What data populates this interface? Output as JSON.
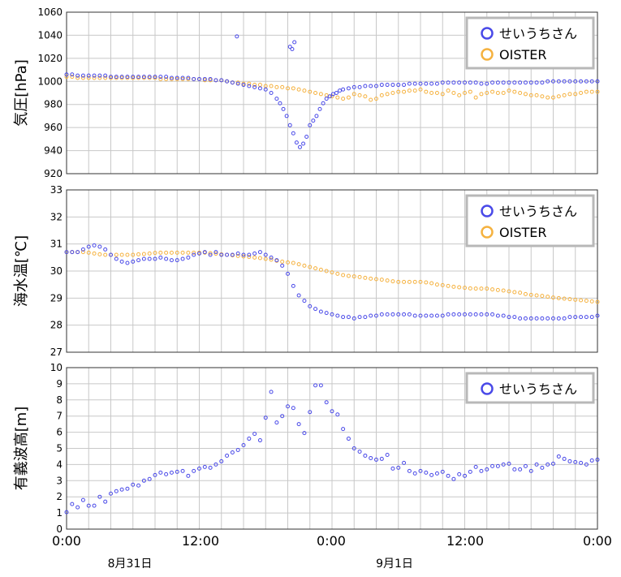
{
  "x_ticks": [
    "0:00",
    "12:00",
    "0:00",
    "12:00",
    "0:00"
  ],
  "date_labels": [
    "8月31日",
    "9月1日"
  ],
  "colors": {
    "seiuchi": "#4a4ae8",
    "oister": "#f5b240",
    "grid": "#c8c8c8",
    "legend_border": "#b8b8b8"
  },
  "chart_data": [
    {
      "type": "scatter",
      "ylabel": "気圧[hPa]",
      "ylim": [
        920,
        1060
      ],
      "yticks": [
        "920",
        "940",
        "960",
        "980",
        "1000",
        "1020",
        "1040",
        "1060"
      ],
      "xlim": [
        0,
        48
      ],
      "grid": true,
      "legend": "top-right",
      "series": [
        {
          "name": "せいうちさん",
          "x": [
            0,
            0.5,
            1,
            1.5,
            2,
            2.5,
            3,
            3.5,
            4,
            4.5,
            5,
            5.5,
            6,
            6.5,
            7,
            7.5,
            8,
            8.5,
            9,
            9.5,
            10,
            10.5,
            11,
            11.5,
            12,
            12.5,
            13,
            13.5,
            14,
            14.5,
            15,
            15.5,
            16,
            16.5,
            17,
            17.5,
            18,
            18.5,
            19,
            19.3,
            19.6,
            19.9,
            20.2,
            20.5,
            20.8,
            21.1,
            21.4,
            21.7,
            22,
            22.3,
            22.6,
            22.9,
            23.2,
            23.5,
            23.8,
            24.1,
            24.4,
            24.7,
            25,
            25.5,
            26,
            26.5,
            27,
            27.5,
            28,
            28.5,
            29,
            29.5,
            30,
            30.5,
            31,
            31.5,
            32,
            32.5,
            33,
            33.5,
            34,
            34.5,
            35,
            35.5,
            36,
            36.5,
            37,
            37.5,
            38,
            38.5,
            39,
            39.5,
            40,
            40.5,
            41,
            41.5,
            42,
            42.5,
            43,
            43.5,
            44,
            44.5,
            45,
            45.5,
            46,
            46.5,
            47,
            47.5,
            48,
            15.4,
            20.4,
            20.6,
            20.2
          ],
          "y": [
            1006,
            1006,
            1005,
            1005,
            1005,
            1005,
            1005,
            1005,
            1004,
            1004,
            1004,
            1004,
            1004,
            1004,
            1004,
            1004,
            1004,
            1004,
            1004,
            1003,
            1003,
            1003,
            1003,
            1002,
            1002,
            1002,
            1002,
            1001,
            1001,
            1000,
            999,
            998,
            997,
            996,
            995,
            994,
            993,
            990,
            985,
            981,
            976,
            970,
            962,
            955,
            947,
            943,
            946,
            952,
            962,
            966,
            970,
            976,
            981,
            985,
            987,
            989,
            990,
            992,
            993,
            994,
            995,
            995,
            996,
            996,
            996,
            997,
            997,
            997,
            997,
            997,
            998,
            998,
            998,
            998,
            998,
            998,
            999,
            999,
            999,
            999,
            999,
            999,
            999,
            998,
            998,
            999,
            999,
            999,
            999,
            999,
            999,
            999,
            999,
            999,
            999,
            1000,
            1000,
            1000,
            1000,
            1000,
            1000,
            1000,
            1000,
            1000,
            1000,
            1039,
            1028,
            1034,
            1030
          ]
        },
        {
          "name": "OISTER",
          "x": [
            0,
            0.5,
            1,
            1.5,
            2,
            2.5,
            3,
            3.5,
            4,
            4.5,
            5,
            5.5,
            6,
            6.5,
            7,
            7.5,
            8,
            8.5,
            9,
            9.5,
            10,
            10.5,
            11,
            11.5,
            12,
            12.5,
            13,
            13.5,
            14,
            14.5,
            15,
            15.5,
            16,
            16.5,
            17,
            17.5,
            18,
            18.5,
            19,
            19.5,
            20,
            20.5,
            21,
            21.5,
            22,
            22.5,
            23,
            23.5,
            24,
            24.5,
            25,
            25.5,
            26,
            26.5,
            27,
            27.5,
            28,
            28.5,
            29,
            29.5,
            30,
            30.5,
            31,
            31.5,
            32,
            32.5,
            33,
            33.5,
            34,
            34.5,
            35,
            35.5,
            36,
            36.5,
            37,
            37.5,
            38,
            38.5,
            39,
            39.5,
            40,
            40.5,
            41,
            41.5,
            42,
            42.5,
            43,
            43.5,
            44,
            44.5,
            45,
            45.5,
            46,
            46.5,
            47,
            47.5,
            48
          ],
          "y": [
            1004,
            1004,
            1003,
            1003,
            1003,
            1003,
            1003,
            1003,
            1003,
            1003,
            1003,
            1003,
            1003,
            1003,
            1003,
            1003,
            1003,
            1002,
            1002,
            1002,
            1002,
            1002,
            1002,
            1002,
            1002,
            1001,
            1001,
            1001,
            1001,
            1000,
            999,
            999,
            998,
            998,
            997,
            997,
            996,
            996,
            995,
            995,
            994,
            994,
            993,
            992,
            991,
            990,
            989,
            988,
            987,
            986,
            985,
            986,
            989,
            988,
            987,
            984,
            985,
            988,
            989,
            990,
            991,
            991,
            992,
            992,
            993,
            991,
            990,
            990,
            989,
            992,
            990,
            988,
            990,
            991,
            986,
            989,
            990,
            991,
            990,
            990,
            992,
            991,
            990,
            989,
            988,
            988,
            987,
            986,
            986,
            987,
            988,
            989,
            989,
            990,
            991,
            991,
            991
          ]
        }
      ]
    },
    {
      "type": "scatter",
      "ylabel": "海水温[℃]",
      "ylim": [
        27,
        33
      ],
      "yticks": [
        "27",
        "28",
        "29",
        "30",
        "31",
        "32",
        "33"
      ],
      "xlim": [
        0,
        48
      ],
      "grid": true,
      "legend": "top-right",
      "series": [
        {
          "name": "せいうちさん",
          "x": [
            0,
            0.5,
            1,
            1.5,
            2,
            2.5,
            3,
            3.5,
            4,
            4.5,
            5,
            5.5,
            6,
            6.5,
            7,
            7.5,
            8,
            8.5,
            9,
            9.5,
            10,
            10.5,
            11,
            11.5,
            12,
            12.5,
            13,
            13.5,
            14,
            14.5,
            15,
            15.5,
            16,
            16.5,
            17,
            17.5,
            18,
            18.5,
            19,
            19.5,
            20,
            20.5,
            21,
            21.5,
            22,
            22.5,
            23,
            23.5,
            24,
            24.5,
            25,
            25.5,
            26,
            26.5,
            27,
            27.5,
            28,
            28.5,
            29,
            29.5,
            30,
            30.5,
            31,
            31.5,
            32,
            32.5,
            33,
            33.5,
            34,
            34.5,
            35,
            35.5,
            36,
            36.5,
            37,
            37.5,
            38,
            38.5,
            39,
            39.5,
            40,
            40.5,
            41,
            41.5,
            42,
            42.5,
            43,
            43.5,
            44,
            44.5,
            45,
            45.5,
            46,
            46.5,
            47,
            47.5,
            48
          ],
          "y": [
            30.7,
            30.7,
            30.7,
            30.8,
            30.9,
            30.95,
            30.9,
            30.8,
            30.6,
            30.45,
            30.35,
            30.3,
            30.35,
            30.4,
            30.45,
            30.45,
            30.45,
            30.5,
            30.45,
            30.4,
            30.4,
            30.45,
            30.5,
            30.6,
            30.65,
            30.7,
            30.6,
            30.7,
            30.6,
            30.6,
            30.6,
            30.65,
            30.6,
            30.6,
            30.65,
            30.7,
            30.6,
            30.5,
            30.4,
            30.2,
            29.9,
            29.45,
            29.1,
            28.9,
            28.7,
            28.6,
            28.5,
            28.45,
            28.4,
            28.35,
            28.3,
            28.3,
            28.25,
            28.3,
            28.3,
            28.35,
            28.35,
            28.4,
            28.4,
            28.4,
            28.4,
            28.4,
            28.4,
            28.35,
            28.35,
            28.35,
            28.35,
            28.35,
            28.35,
            28.4,
            28.4,
            28.4,
            28.4,
            28.4,
            28.4,
            28.4,
            28.4,
            28.4,
            28.35,
            28.35,
            28.3,
            28.3,
            28.25,
            28.25,
            28.25,
            28.25,
            28.25,
            28.25,
            28.25,
            28.25,
            28.25,
            28.3,
            28.3,
            28.3,
            28.3,
            28.3,
            28.35
          ]
        },
        {
          "name": "OISTER",
          "x": [
            0,
            0.5,
            1,
            1.5,
            2,
            2.5,
            3,
            3.5,
            4,
            4.5,
            5,
            5.5,
            6,
            6.5,
            7,
            7.5,
            8,
            8.5,
            9,
            9.5,
            10,
            10.5,
            11,
            11.5,
            12,
            12.5,
            13,
            13.5,
            14,
            14.5,
            15,
            15.5,
            16,
            16.5,
            17,
            17.5,
            18,
            18.5,
            19,
            19.5,
            20,
            20.5,
            21,
            21.5,
            22,
            22.5,
            23,
            23.5,
            24,
            24.5,
            25,
            25.5,
            26,
            26.5,
            27,
            27.5,
            28,
            28.5,
            29,
            29.5,
            30,
            30.5,
            31,
            31.5,
            32,
            32.5,
            33,
            33.5,
            34,
            34.5,
            35,
            35.5,
            36,
            36.5,
            37,
            37.5,
            38,
            38.5,
            39,
            39.5,
            40,
            40.5,
            41,
            41.5,
            42,
            42.5,
            43,
            43.5,
            44,
            44.5,
            45,
            45.5,
            46,
            46.5,
            47,
            47.5,
            48
          ],
          "y": [
            30.7,
            30.7,
            30.7,
            30.7,
            30.68,
            30.65,
            30.62,
            30.6,
            30.6,
            30.6,
            30.6,
            30.6,
            30.6,
            30.62,
            30.63,
            30.65,
            30.67,
            30.68,
            30.68,
            30.68,
            30.68,
            30.68,
            30.68,
            30.68,
            30.68,
            30.68,
            30.66,
            30.64,
            30.62,
            30.6,
            30.58,
            30.56,
            30.54,
            30.52,
            30.5,
            30.48,
            30.45,
            30.42,
            30.38,
            30.35,
            30.32,
            30.3,
            30.25,
            30.2,
            30.15,
            30.1,
            30.05,
            30,
            29.95,
            29.9,
            29.85,
            29.82,
            29.8,
            29.78,
            29.75,
            29.72,
            29.7,
            29.68,
            29.65,
            29.62,
            29.6,
            29.6,
            29.6,
            29.6,
            29.6,
            29.58,
            29.55,
            29.5,
            29.48,
            29.45,
            29.42,
            29.4,
            29.38,
            29.36,
            29.35,
            29.35,
            29.35,
            29.32,
            29.3,
            29.28,
            29.25,
            29.22,
            29.2,
            29.15,
            29.12,
            29.1,
            29.08,
            29.05,
            29.02,
            29,
            28.98,
            28.96,
            28.94,
            28.92,
            28.9,
            28.88,
            28.86
          ]
        }
      ]
    },
    {
      "type": "scatter",
      "ylabel": "有義波高[m]",
      "ylim": [
        0,
        10
      ],
      "yticks": [
        "0",
        "1",
        "2",
        "3",
        "4",
        "5",
        "6",
        "7",
        "8",
        "9",
        "10"
      ],
      "xlim": [
        0,
        48
      ],
      "grid": true,
      "legend": "top-right",
      "series": [
        {
          "name": "せいうちさん",
          "x": [
            0,
            0.5,
            1,
            1.5,
            2,
            2.5,
            3,
            3.5,
            4,
            4.5,
            5,
            5.5,
            6,
            6.5,
            7,
            7.5,
            8,
            8.5,
            9,
            9.5,
            10,
            10.5,
            11,
            11.5,
            12,
            12.5,
            13,
            13.5,
            14,
            14.5,
            15,
            15.5,
            16,
            16.5,
            17,
            17.5,
            18,
            18.5,
            19,
            19.5,
            20,
            20.5,
            21,
            21.5,
            22,
            22.5,
            23,
            23.5,
            24,
            24.5,
            25,
            25.5,
            26,
            26.5,
            27,
            27.5,
            28,
            28.5,
            29,
            29.5,
            30,
            30.5,
            31,
            31.5,
            32,
            32.5,
            33,
            33.5,
            34,
            34.5,
            35,
            35.5,
            36,
            36.5,
            37,
            37.5,
            38,
            38.5,
            39,
            39.5,
            40,
            40.5,
            41,
            41.5,
            42,
            42.5,
            43,
            43.5,
            44,
            44.5,
            45,
            45.5,
            46,
            46.5,
            47,
            47.5,
            48
          ],
          "y": [
            1.05,
            1.55,
            1.35,
            1.8,
            1.45,
            1.45,
            2.0,
            1.7,
            2.2,
            2.35,
            2.45,
            2.5,
            2.75,
            2.7,
            3.0,
            3.1,
            3.35,
            3.5,
            3.4,
            3.5,
            3.55,
            3.6,
            3.3,
            3.6,
            3.75,
            3.85,
            3.8,
            4.0,
            4.2,
            4.55,
            4.75,
            4.9,
            5.2,
            5.6,
            5.9,
            5.5,
            6.9,
            8.5,
            6.6,
            7.0,
            7.6,
            7.5,
            6.5,
            5.95,
            7.25,
            8.9,
            8.9,
            7.85,
            7.3,
            7.1,
            6.2,
            5.6,
            5.0,
            4.8,
            4.55,
            4.4,
            4.3,
            4.35,
            4.6,
            3.75,
            3.8,
            4.1,
            3.6,
            3.45,
            3.6,
            3.5,
            3.35,
            3.45,
            3.55,
            3.3,
            3.1,
            3.4,
            3.3,
            3.55,
            3.85,
            3.6,
            3.7,
            3.9,
            3.9,
            4.0,
            4.05,
            3.7,
            3.7,
            3.9,
            3.6,
            4.0,
            3.8,
            4.0,
            4.05,
            4.5,
            4.35,
            4.2,
            4.15,
            4.1,
            4.0,
            4.25,
            4.3
          ]
        }
      ]
    }
  ]
}
